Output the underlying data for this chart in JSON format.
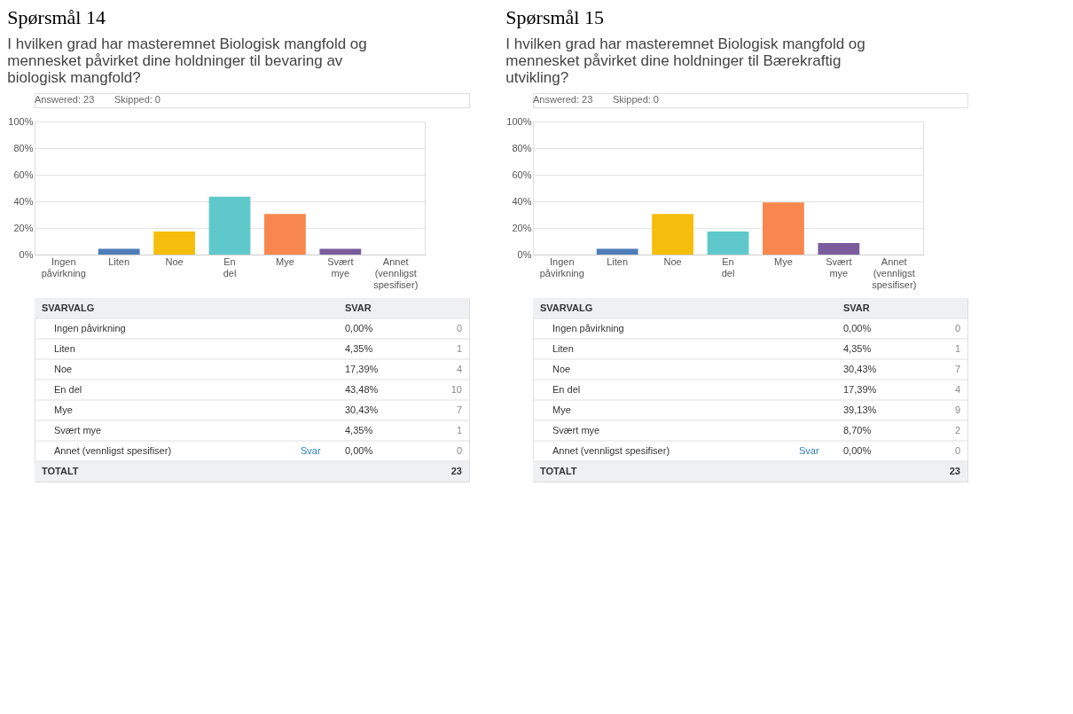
{
  "chart_data": [
    {
      "type": "bar",
      "title": "Spørsmål 14",
      "subtitle": "I hvilken grad har masteremnet Biologisk mangfold og mennesket påvirket dine holdninger til bevaring av biologisk mangfold?",
      "categories": [
        "Ingen påvirkning",
        "Liten",
        "Noe",
        "En del",
        "Mye",
        "Svært mye",
        "Annet (vennligst spesifiser)"
      ],
      "values": [
        0,
        4.35,
        17.39,
        43.48,
        30.43,
        4.35,
        0
      ],
      "colors": [
        "#6aa84f",
        "#4f7db8",
        "#f5be0c",
        "#5fc8cb",
        "#f8874f",
        "#7a5c9c",
        "#c7c7c7"
      ],
      "ylim": [
        0,
        100
      ],
      "yticks": [
        {
          "value": 0,
          "label": "0%"
        },
        {
          "value": 20,
          "label": "20%"
        },
        {
          "value": 40,
          "label": "40%"
        },
        {
          "value": 60,
          "label": "60%"
        },
        {
          "value": 80,
          "label": "80%"
        },
        {
          "value": 100,
          "label": "100%"
        }
      ],
      "grid": "y",
      "legend": false,
      "annotations": [
        "Answered: 23",
        "Skipped: 0",
        "SVARVALG",
        "SVAR",
        "0,00%",
        "4,35%",
        "17,39%",
        "43,48%",
        "30,43%",
        "4,35%",
        "0,00%",
        "0",
        "1",
        "4",
        "10",
        "7",
        "1",
        "0",
        "Svar",
        "TOTALT",
        "23"
      ]
    },
    {
      "type": "bar",
      "title": "Spørsmål 15",
      "subtitle": "I hvilken grad har masteremnet Biologisk mangfold og mennesket påvirket dine holdninger til Bærekraftig utvikling?",
      "categories": [
        "Ingen påvirkning",
        "Liten",
        "Noe",
        "En del",
        "Mye",
        "Svært mye",
        "Annet (vennligst spesifiser)"
      ],
      "values": [
        0,
        4.35,
        30.43,
        17.39,
        39.13,
        8.7,
        0
      ],
      "colors": [
        "#6aa84f",
        "#4f7db8",
        "#f5be0c",
        "#5fc8cb",
        "#f8874f",
        "#7a5c9c",
        "#c7c7c7"
      ],
      "ylim": [
        0,
        100
      ],
      "yticks": [
        {
          "value": 0,
          "label": "0%"
        },
        {
          "value": 20,
          "label": "20%"
        },
        {
          "value": 40,
          "label": "40%"
        },
        {
          "value": 60,
          "label": "60%"
        },
        {
          "value": 80,
          "label": "80%"
        },
        {
          "value": 100,
          "label": "100%"
        }
      ],
      "grid": "y",
      "legend": false,
      "annotations": [
        "Answered: 23",
        "Skipped: 0",
        "SVARVALG",
        "SVAR",
        "0,00%",
        "4,35%",
        "30,43%",
        "17,39%",
        "39,13%",
        "8,70%",
        "0,00%",
        "0",
        "1",
        "7",
        "4",
        "9",
        "2",
        "0",
        "Svar",
        "TOTALT",
        "23"
      ]
    }
  ]
}
